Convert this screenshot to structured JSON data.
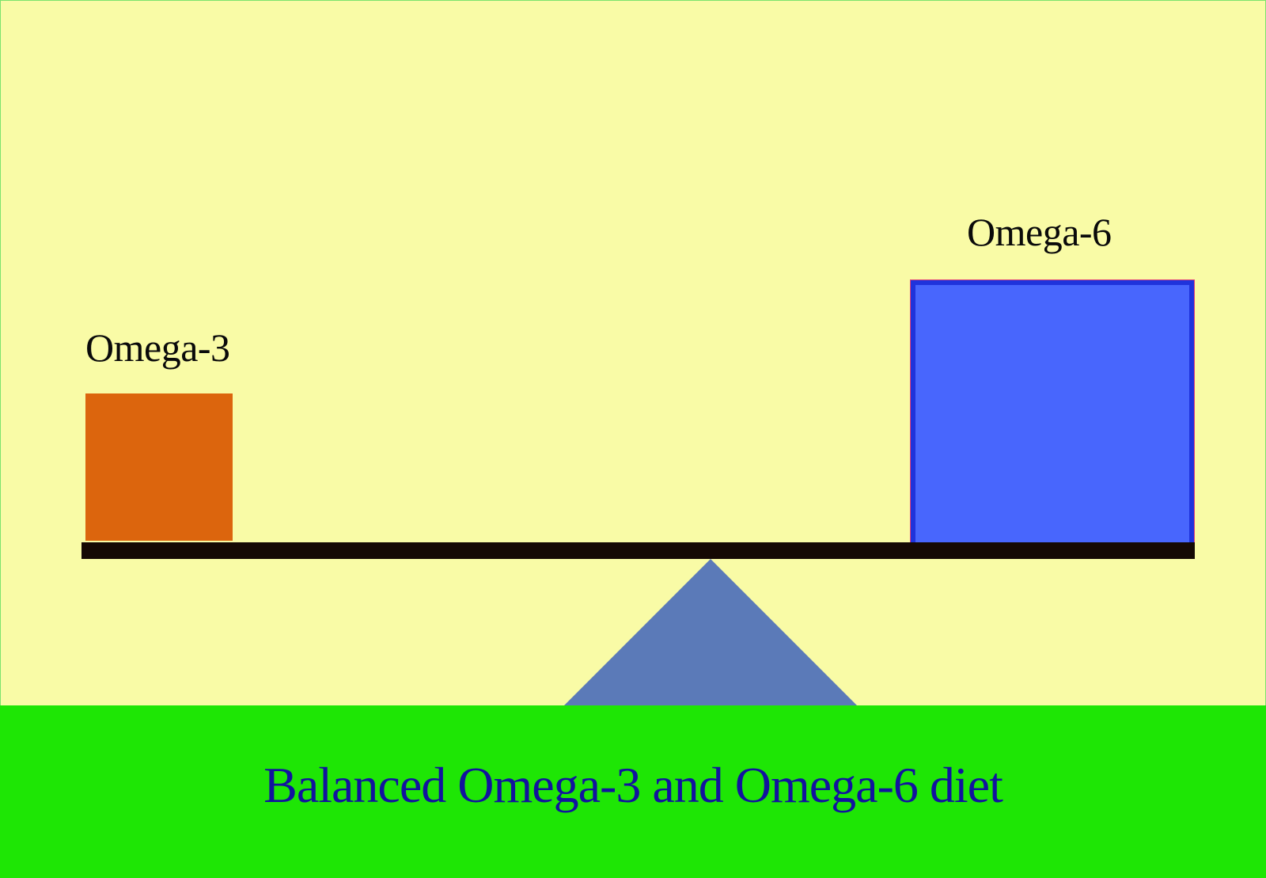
{
  "labels": {
    "omega3": "Omega-3",
    "omega6": "Omega-6"
  },
  "footer": {
    "title": "Balanced Omega-3 and Omega-6 diet"
  },
  "colors": {
    "background": "#f9fba6",
    "omega3_block": "#dc650d",
    "omega6_block": "#4866fd",
    "omega6_border": "#1f33dc",
    "beam": "#150904",
    "fulcrum": "#5b7ab8",
    "footer_bg": "#1ee605",
    "footer_text": "#12139e"
  }
}
